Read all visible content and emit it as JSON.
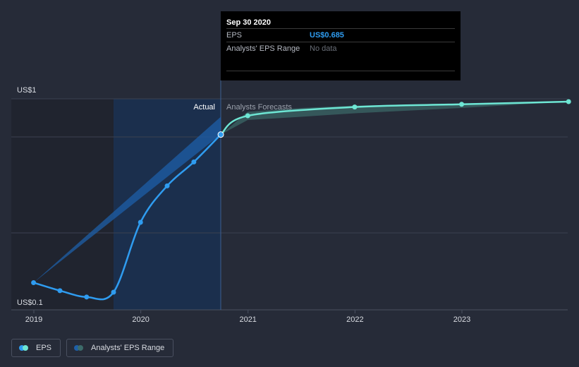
{
  "tooltip": {
    "date": "Sep 30 2020",
    "eps_label": "EPS",
    "eps_value": "US$0.685",
    "range_label": "Analysts' EPS Range",
    "range_value": "No data"
  },
  "sections": {
    "actual": "Actual",
    "forecast": "Analysts Forecasts"
  },
  "legend": {
    "eps": "EPS",
    "range": "Analysts' EPS Range"
  },
  "colors": {
    "eps_actual": "#2f9cf0",
    "eps_forecast": "#6ee6d4",
    "range_actual": "#1e5fa8",
    "range_forecast": "#3c6b6a",
    "background": "#262b38"
  },
  "chart_data": {
    "type": "line",
    "x_ticks": [
      "2019",
      "2020",
      "2021",
      "2022",
      "2023"
    ],
    "y_ticks": [
      "US$1",
      "US$0.1"
    ],
    "ylim": [
      0.1,
      1
    ],
    "y_scale": "log",
    "highlight_point": {
      "date": "2020-09-30",
      "value": 0.685
    },
    "series": [
      {
        "name": "EPS",
        "segment": "actual",
        "x": [
          "2018-12-31",
          "2019-03-31",
          "2019-06-30",
          "2019-09-30",
          "2019-12-31",
          "2020-03-31",
          "2020-06-30",
          "2020-09-30"
        ],
        "values": [
          0.125,
          0.114,
          0.106,
          0.112,
          0.25,
          0.38,
          0.5,
          0.685
        ]
      },
      {
        "name": "EPS",
        "segment": "forecast",
        "x": [
          "2020-09-30",
          "2020-12-31",
          "2021-12-31",
          "2022-12-31",
          "2023-12-31"
        ],
        "values": [
          0.685,
          0.85,
          0.94,
          0.97,
          1.0
        ]
      }
    ],
    "range": [
      {
        "name": "Analysts' EPS Range",
        "segment": "actual",
        "x": [
          "2018-12-31",
          "2020-09-30"
        ],
        "low": [
          0.125,
          0.685
        ],
        "high": [
          0.125,
          0.84
        ]
      },
      {
        "name": "Analysts' EPS Range",
        "segment": "forecast",
        "x": [
          "2020-09-30",
          "2020-12-31",
          "2021-06-30",
          "2021-12-31",
          "2022-12-31",
          "2023-12-31"
        ],
        "low": [
          0.685,
          0.81,
          0.84,
          0.875,
          0.93,
          1.0
        ],
        "high": [
          0.685,
          0.89,
          0.93,
          0.955,
          0.98,
          1.0
        ]
      }
    ]
  }
}
